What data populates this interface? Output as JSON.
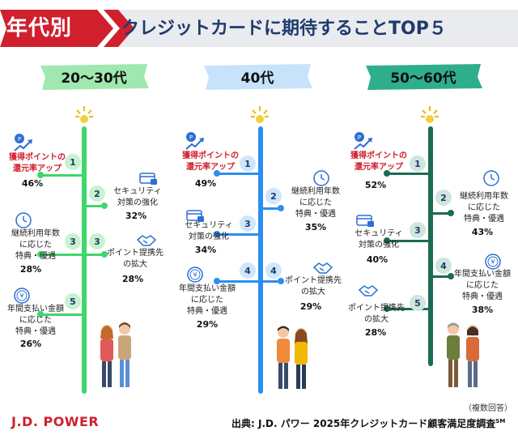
{
  "header": {
    "tag": "年代別",
    "title": "クレジットカードに期待することTOP５"
  },
  "columns": [
    {
      "label": "20〜30代",
      "items": [
        {
          "rank": "1",
          "label_lines": [
            "獲得ポイントの",
            "還元率アップ"
          ],
          "value": "46%",
          "highlight": true
        },
        {
          "rank": "2",
          "label_lines": [
            "セキュリティ",
            "対策の強化"
          ],
          "value": "32%"
        },
        {
          "rank": "3",
          "label_lines": [
            "継続利用年数",
            "に応じた",
            "特典・優遇"
          ],
          "value": "28%"
        },
        {
          "rank": "3",
          "label_lines": [
            "ポイント提携先",
            "の拡大"
          ],
          "value": "28%"
        },
        {
          "rank": "5",
          "label_lines": [
            "年間支払い金額",
            "に応じた",
            "特典・優遇"
          ],
          "value": "26%"
        }
      ]
    },
    {
      "label": "40代",
      "items": [
        {
          "rank": "1",
          "label_lines": [
            "獲得ポイントの",
            "還元率アップ"
          ],
          "value": "49%",
          "highlight": true
        },
        {
          "rank": "2",
          "label_lines": [
            "継続利用年数",
            "に応じた",
            "特典・優遇"
          ],
          "value": "35%"
        },
        {
          "rank": "3",
          "label_lines": [
            "セキュリティ",
            "対策の強化"
          ],
          "value": "34%"
        },
        {
          "rank": "4",
          "label_lines": [
            "ポイント提携先",
            "の拡大"
          ],
          "value": "29%"
        },
        {
          "rank": "4",
          "label_lines": [
            "年間支払い金額",
            "に応じた",
            "特典・優遇"
          ],
          "value": "29%"
        }
      ]
    },
    {
      "label": "50〜60代",
      "items": [
        {
          "rank": "1",
          "label_lines": [
            "獲得ポイントの",
            "還元率アップ"
          ],
          "value": "52%",
          "highlight": true
        },
        {
          "rank": "2",
          "label_lines": [
            "継続利用年数",
            "に応じた",
            "特典・優遇"
          ],
          "value": "43%"
        },
        {
          "rank": "3",
          "label_lines": [
            "セキュリティ",
            "対策の強化"
          ],
          "value": "40%"
        },
        {
          "rank": "4",
          "label_lines": [
            "年間支払い金額",
            "に応じた",
            "特典・優遇"
          ],
          "value": "38%"
        },
        {
          "rank": "5",
          "label_lines": [
            "ポイント提携先",
            "の拡大"
          ],
          "value": "28%"
        }
      ]
    }
  ],
  "footer": {
    "brand": "J.D. POWER",
    "note": "（複数回答）",
    "source": "出典: J.D. パワー 2025年クレジットカード顧客満足度調査",
    "source_mark": "SM"
  },
  "colors": {
    "header_red": "#d0202e",
    "header_gray": "#e9ebef",
    "title_navy": "#1f3a6b",
    "col1": "#3fd66b",
    "col1_light": "#c8f2d0",
    "col2": "#2b8ff0",
    "col2_light": "#cfe6fb",
    "col3": "#1d6a55",
    "col3_light": "#cfe5de"
  }
}
